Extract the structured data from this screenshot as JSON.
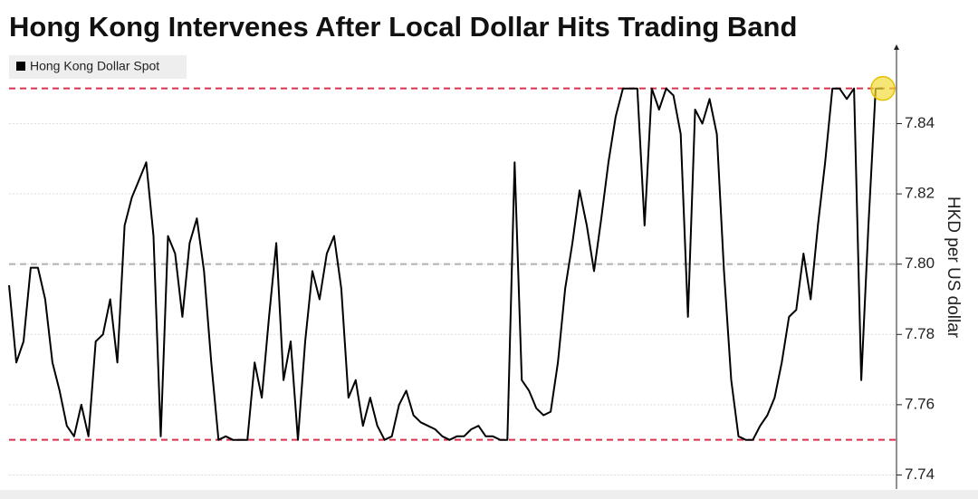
{
  "chart_data": {
    "type": "line",
    "title": "Hong Kong Intervenes After Local Dollar Hits Trading Band",
    "y_label": "HKD per US dollar",
    "series": [
      {
        "name": "Hong Kong Dollar Spot",
        "color": "#000000",
        "values": [
          7.794,
          7.772,
          7.778,
          7.799,
          7.799,
          7.79,
          7.772,
          7.764,
          7.754,
          7.751,
          7.76,
          7.751,
          7.778,
          7.78,
          7.79,
          7.772,
          7.811,
          7.819,
          7.824,
          7.829,
          7.808,
          7.751,
          7.808,
          7.803,
          7.785,
          7.806,
          7.813,
          7.798,
          7.772,
          7.75,
          7.751,
          7.75,
          7.75,
          7.75,
          7.772,
          7.762,
          7.785,
          7.806,
          7.767,
          7.778,
          7.75,
          7.778,
          7.798,
          7.79,
          7.803,
          7.808,
          7.793,
          7.762,
          7.767,
          7.754,
          7.762,
          7.754,
          7.75,
          7.751,
          7.76,
          7.764,
          7.757,
          7.755,
          7.754,
          7.753,
          7.751,
          7.75,
          7.751,
          7.751,
          7.753,
          7.754,
          7.751,
          7.751,
          7.75,
          7.75,
          7.829,
          7.767,
          7.764,
          7.759,
          7.757,
          7.758,
          7.772,
          7.793,
          7.806,
          7.821,
          7.811,
          7.798,
          7.813,
          7.829,
          7.842,
          7.85,
          7.85,
          7.85,
          7.811,
          7.85,
          7.844,
          7.85,
          7.848,
          7.837,
          7.785,
          7.844,
          7.84,
          7.847,
          7.837,
          7.798,
          7.767,
          7.751,
          7.75,
          7.75,
          7.754,
          7.757,
          7.762,
          7.772,
          7.785,
          7.787,
          7.803,
          7.79,
          7.811,
          7.829,
          7.85,
          7.85,
          7.847,
          7.85,
          7.767,
          7.811,
          7.85,
          7.85
        ]
      }
    ],
    "ylim": [
      7.736,
      7.861
    ],
    "yticks": [
      7.74,
      7.76,
      7.78,
      {
        "value": 7.8,
        "label": "7.80"
      },
      7.82,
      7.84
    ],
    "grid": true,
    "reference_lines": [
      {
        "value": 7.85,
        "color": "#d9304c"
      },
      {
        "value": 7.8,
        "color": "#b0b0b0"
      },
      {
        "value": 7.75,
        "color": "#d9304c"
      }
    ],
    "highlight_color": "#f2dc3a",
    "legend": "top-left"
  }
}
